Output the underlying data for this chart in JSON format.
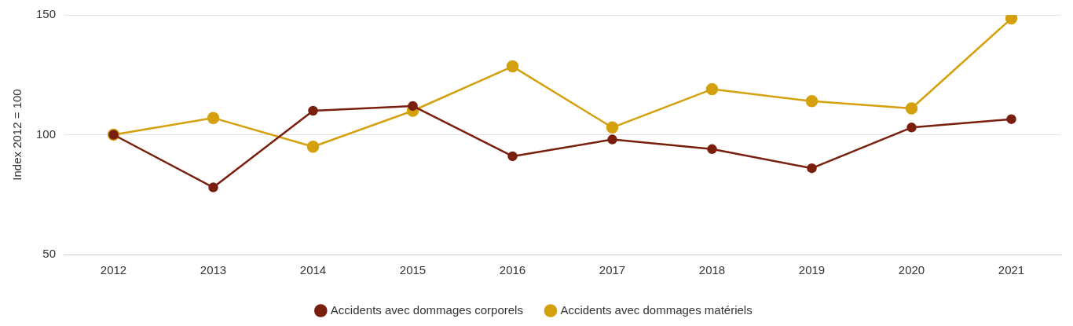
{
  "chart_data": {
    "type": "line",
    "ylabel": "Index 2012 = 100",
    "categories": [
      "2012",
      "2013",
      "2014",
      "2015",
      "2016",
      "2017",
      "2018",
      "2019",
      "2020",
      "2021"
    ],
    "series": [
      {
        "name": "Accidents avec dommages corporels",
        "color": "#7a1f0e",
        "values": [
          100,
          78,
          110,
          112,
          91,
          98,
          94,
          86,
          103,
          106.5
        ]
      },
      {
        "name": "Accidents avec dommages matériels",
        "color": "#d4a00c",
        "values": [
          100,
          107,
          95,
          110,
          128.5,
          103,
          119,
          114,
          111,
          148.5
        ]
      }
    ],
    "ylim": [
      50,
      150
    ],
    "yticks": [
      50,
      100,
      150
    ],
    "grid": "y",
    "legend": "bottom",
    "marker": "circle",
    "line_style": "solid"
  }
}
